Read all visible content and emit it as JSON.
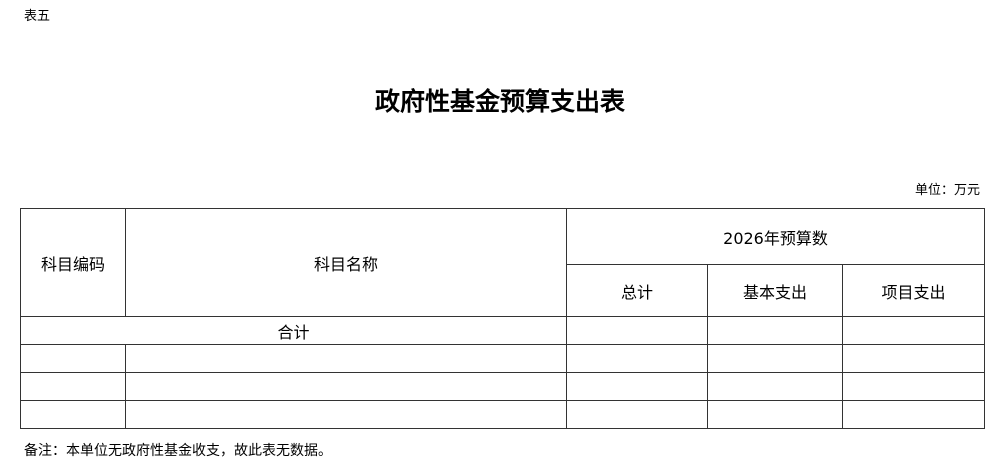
{
  "table_label": "表五",
  "title": "政府性基金预算支出表",
  "unit": "单位：万元",
  "headers": {
    "code": "科目编码",
    "name": "科目名称",
    "budget_group": "2026年预算数",
    "total": "总计",
    "basic": "基本支出",
    "project": "项目支出"
  },
  "total_row_label": "合计",
  "note": "备注：本单位无政府性基金收支，故此表无数据。"
}
